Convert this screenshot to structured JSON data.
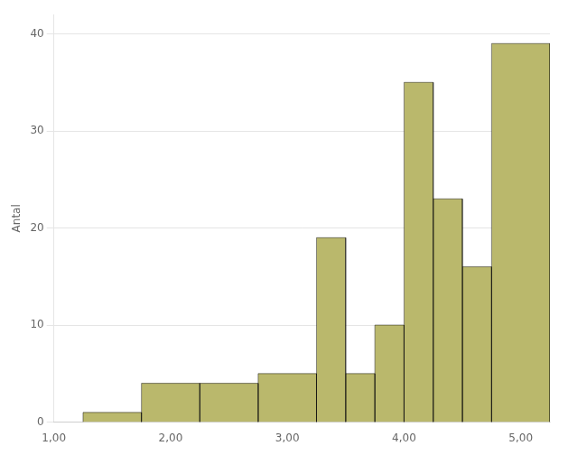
{
  "chart_data": {
    "type": "histogram",
    "bins": [
      1.25,
      1.75,
      2.25,
      2.75,
      3.25,
      3.5,
      3.75,
      4.0,
      4.25,
      4.5,
      4.75,
      5.25
    ],
    "values": [
      1,
      4,
      4,
      5,
      19,
      5,
      10,
      35,
      23,
      16,
      39
    ],
    "color": "#bab86c",
    "ylabel": "Antal",
    "xlim": [
      1.0,
      5.25
    ],
    "ylim": [
      0,
      42
    ],
    "xticks": [
      {
        "value": 1.0,
        "label": "1,00"
      },
      {
        "value": 2.0,
        "label": "2,00"
      },
      {
        "value": 3.0,
        "label": "3,00"
      },
      {
        "value": 4.0,
        "label": "4,00"
      },
      {
        "value": 5.0,
        "label": "5,00"
      }
    ],
    "yticks": [
      0,
      10,
      20,
      30,
      40
    ],
    "grid": "y"
  }
}
